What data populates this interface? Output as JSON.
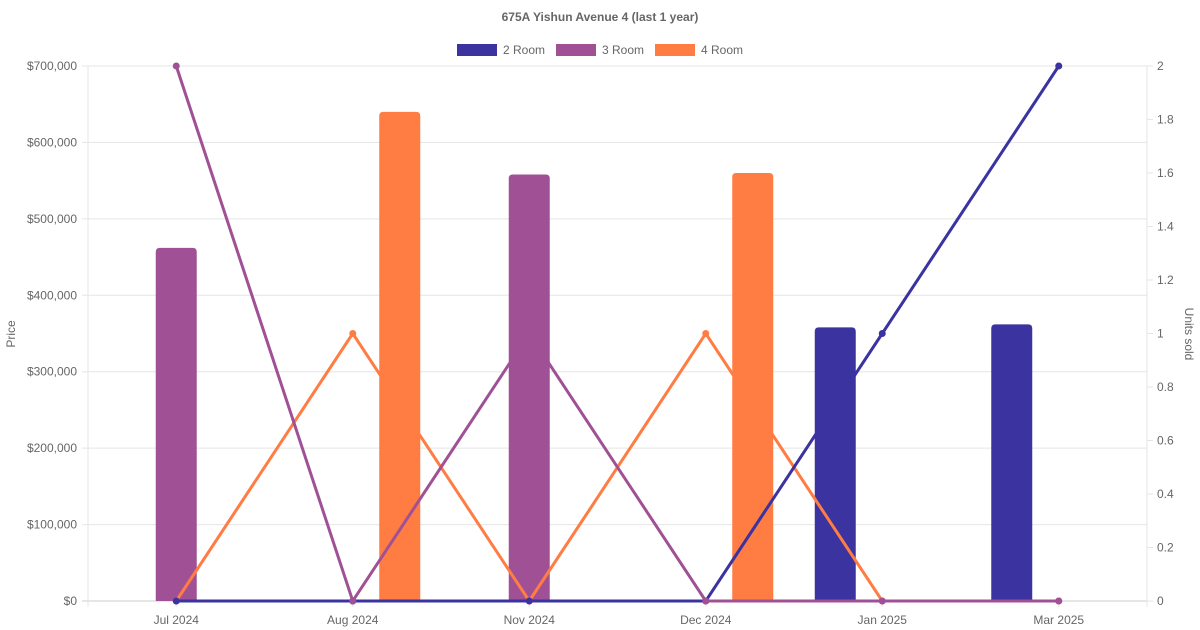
{
  "chart_data": {
    "type": "bar",
    "title": "675A Yishun Avenue 4 (last 1 year)",
    "categories": [
      "Jul 2024",
      "Aug 2024",
      "Nov 2024",
      "Dec 2024",
      "Jan 2025",
      "Mar 2025"
    ],
    "ylabel": "Price",
    "y2label": "Units sold",
    "ylim": [
      0,
      700000
    ],
    "y2lim": [
      0,
      2
    ],
    "yticks": [
      "$0",
      "$100,000",
      "$200,000",
      "$300,000",
      "$400,000",
      "$500,000",
      "$600,000",
      "$700,000"
    ],
    "y2ticks": [
      "0",
      "0.2",
      "0.4",
      "0.6",
      "0.8",
      "1",
      "1.2",
      "1.4",
      "1.6",
      "1.8",
      "2"
    ],
    "grid": true,
    "legend_position": "top",
    "series": [
      {
        "name": "2 Room",
        "color": "#3a33a0",
        "price": [
          null,
          null,
          null,
          null,
          358000,
          362000
        ],
        "units": [
          0,
          0,
          0,
          0,
          1,
          2
        ]
      },
      {
        "name": "3 Room",
        "color": "#a05195",
        "price": [
          462000,
          null,
          558000,
          null,
          null,
          null
        ],
        "units": [
          2,
          0,
          1,
          0,
          0,
          0
        ]
      },
      {
        "name": "4 Room",
        "color": "#ff7c43",
        "price": [
          null,
          640000,
          null,
          560000,
          null,
          null
        ],
        "units": [
          0,
          1,
          0,
          1,
          0,
          0
        ]
      }
    ]
  }
}
